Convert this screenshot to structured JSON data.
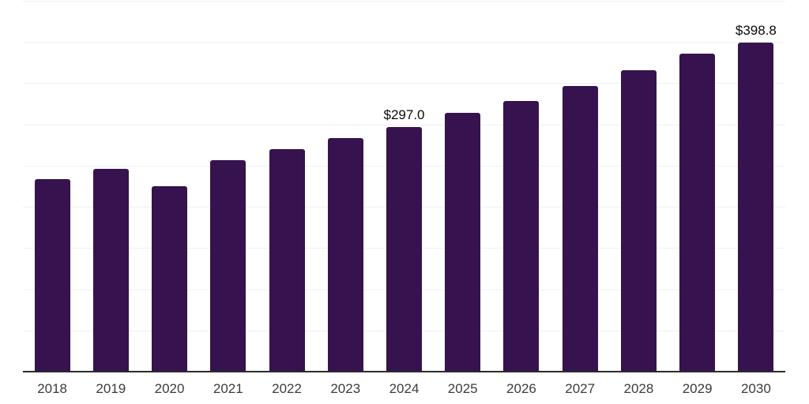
{
  "chart_data": {
    "type": "bar",
    "title": "",
    "xlabel": "",
    "ylabel": "",
    "categories": [
      "2018",
      "2019",
      "2020",
      "2021",
      "2022",
      "2023",
      "2024",
      "2025",
      "2026",
      "2027",
      "2028",
      "2029",
      "2030"
    ],
    "values": [
      233.3,
      246.0,
      225.0,
      256.3,
      270.0,
      283.4,
      297.0,
      313.6,
      328.6,
      346.2,
      366.2,
      385.9,
      398.8
    ],
    "data_labels": [
      null,
      null,
      null,
      null,
      null,
      null,
      "$297.0",
      null,
      null,
      null,
      null,
      null,
      "$398.8"
    ],
    "ylim": [
      0,
      450
    ],
    "grid_step": 50,
    "grid": true,
    "legend": false,
    "y_tick_labels_visible": false,
    "colors": {
      "bar": "#36124e",
      "axis": "#2b2b2b",
      "grid": "#f0f0f0",
      "x_tick_label": "#3c3c3c",
      "data_label": "#0a0a0a",
      "background": "#ffffff"
    }
  }
}
